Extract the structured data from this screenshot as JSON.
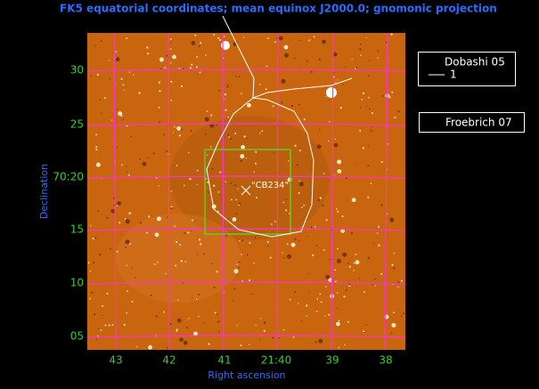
{
  "header": {
    "title": "FK5 equatorial coordinates; mean equinox J2000.0; gnomonic projection"
  },
  "x_axis": {
    "label": "Right ascension",
    "ticks": [
      "43",
      "42",
      "41",
      "21:40",
      "39",
      "38"
    ]
  },
  "y_axis": {
    "label": "Declination",
    "ticks": [
      "30",
      "25",
      "70:20",
      "15",
      "10",
      "05"
    ]
  },
  "legend": [
    {
      "title": "Dobashi 05",
      "entry": "1"
    },
    {
      "title": "Froebrich 07"
    }
  ],
  "annotation": "\"CB234\""
}
